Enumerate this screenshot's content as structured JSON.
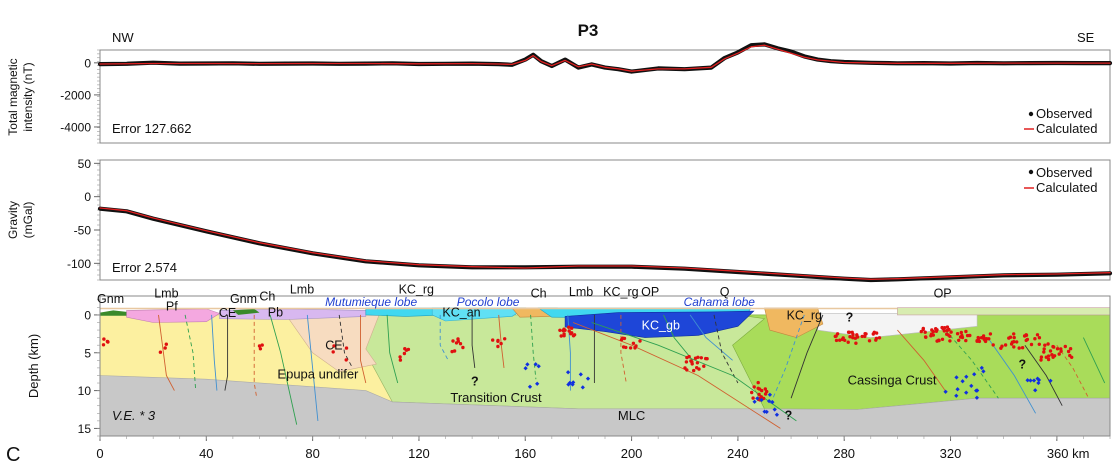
{
  "profile_title": "P3",
  "direction_left": "NW",
  "direction_right": "SE",
  "panel_letter": "C",
  "ve_label": "V.E. * 3",
  "km_unit": "km",
  "colors": {
    "observed": "#111111",
    "calculated": "#e02020",
    "upper_crust_yellow": "#fcf0a0",
    "transition_green": "#c8e89a",
    "cassinga_green": "#a9dc5a",
    "mlc_gray": "#c8c8c8",
    "kc_gb_blue": "#1e46d8",
    "cyan": "#40d8f0",
    "orange": "#f0b860",
    "pink": "#f4a8e0",
    "dark_green": "#3a8a2a",
    "sample_red": "#e01010",
    "sample_blue": "#1030e0"
  },
  "chart_data": [
    {
      "type": "line",
      "panel": "magnetics",
      "ylabel": "Total magnetic intensity (nT)",
      "yticks": [
        0,
        -2000,
        -4000
      ],
      "tick_labels": [
        "0",
        "-2000",
        "-4000"
      ],
      "ylim": [
        -5000,
        800
      ],
      "xlim": [
        0,
        380
      ],
      "legend": [
        "Observed",
        "Calculated"
      ],
      "legend_position": "bottom-right",
      "annotation": "Error 127.662",
      "series": [
        {
          "name": "Observed",
          "x": [
            0,
            10,
            20,
            30,
            40,
            50,
            60,
            70,
            80,
            90,
            100,
            110,
            120,
            130,
            140,
            150,
            155,
            160,
            163,
            166,
            170,
            175,
            180,
            185,
            190,
            195,
            200,
            210,
            220,
            230,
            235,
            240,
            245,
            250,
            255,
            260,
            265,
            270,
            275,
            280,
            290,
            300,
            310,
            320,
            330,
            340,
            350,
            360,
            370,
            380
          ],
          "y": [
            -80,
            -60,
            10,
            -50,
            -40,
            -30,
            -60,
            -50,
            -40,
            -60,
            -50,
            -30,
            -70,
            -60,
            -50,
            -80,
            -120,
            200,
            500,
            100,
            -200,
            200,
            -300,
            -100,
            -300,
            -400,
            -550,
            -350,
            -400,
            -300,
            300,
            650,
            1100,
            1150,
            900,
            700,
            400,
            200,
            100,
            50,
            0,
            -30,
            -20,
            -40,
            -10,
            -30,
            -20,
            -10,
            -20,
            -20
          ]
        },
        {
          "name": "Calculated",
          "x": [
            0,
            20,
            40,
            60,
            80,
            100,
            120,
            140,
            150,
            155,
            160,
            163,
            166,
            170,
            175,
            180,
            185,
            190,
            195,
            200,
            210,
            220,
            230,
            235,
            240,
            245,
            250,
            255,
            260,
            265,
            270,
            280,
            300,
            320,
            340,
            360,
            380
          ],
          "y": [
            -70,
            -40,
            -40,
            -50,
            -40,
            -40,
            -60,
            -50,
            -70,
            -100,
            150,
            450,
            80,
            -180,
            150,
            -250,
            -80,
            -280,
            -380,
            -520,
            -380,
            -380,
            -280,
            250,
            600,
            1000,
            1100,
            850,
            600,
            350,
            180,
            20,
            -30,
            -30,
            -20,
            -20,
            -20
          ]
        }
      ]
    },
    {
      "type": "line",
      "panel": "gravity",
      "ylabel": "Gravity (mGal)",
      "yticks": [
        50,
        0,
        -50,
        -100
      ],
      "tick_labels": [
        "50",
        "0",
        "-50",
        "-100"
      ],
      "ylim": [
        -125,
        55
      ],
      "xlim": [
        0,
        380
      ],
      "legend": [
        "Observed",
        "Calculated"
      ],
      "legend_position": "top-right",
      "annotation": "Error 2.574",
      "series": [
        {
          "name": "Observed",
          "x": [
            0,
            10,
            20,
            40,
            60,
            80,
            100,
            120,
            140,
            160,
            180,
            200,
            220,
            240,
            260,
            280,
            290,
            300,
            320,
            340,
            360,
            380
          ],
          "y": [
            -18,
            -22,
            -33,
            -52,
            -70,
            -85,
            -97,
            -103,
            -106,
            -106,
            -105,
            -105,
            -108,
            -113,
            -118,
            -123,
            -125,
            -124,
            -121,
            -118,
            -117,
            -115
          ]
        },
        {
          "name": "Calculated",
          "x": [
            0,
            10,
            20,
            40,
            60,
            80,
            100,
            120,
            140,
            160,
            180,
            200,
            220,
            240,
            260,
            280,
            290,
            300,
            320,
            340,
            360,
            380
          ],
          "y": [
            -17,
            -21,
            -32,
            -51,
            -69,
            -84,
            -96,
            -102,
            -105,
            -107,
            -104,
            -104,
            -107,
            -112,
            -117,
            -122,
            -124,
            -123,
            -120,
            -117,
            -116,
            -114
          ]
        }
      ]
    },
    {
      "type": "area",
      "panel": "model",
      "ylabel": "Depth (km)",
      "yticks": [
        0,
        5,
        10,
        15
      ],
      "tick_labels": [
        "0",
        "5",
        "10",
        "15"
      ],
      "ylim": [
        -2.5,
        16
      ],
      "xticks": [
        0,
        40,
        80,
        120,
        160,
        200,
        240,
        280,
        320,
        360
      ],
      "xtick_labels": [
        "0",
        "40",
        "80",
        "120",
        "160",
        "200",
        "240",
        "280",
        "320",
        "360 km"
      ],
      "xlim": [
        0,
        380
      ],
      "labels": [
        {
          "text": "Gnm",
          "x": 4,
          "y": -1.6
        },
        {
          "text": "Lmb",
          "x": 25,
          "y": -2.3
        },
        {
          "text": "Pf",
          "x": 27,
          "y": -0.6
        },
        {
          "text": "CE",
          "x": 48,
          "y": 0.3
        },
        {
          "text": "Gnm",
          "x": 54,
          "y": -1.6
        },
        {
          "text": "Ch",
          "x": 63,
          "y": -1.9
        },
        {
          "text": "Pb",
          "x": 66,
          "y": 0.2
        },
        {
          "text": "Lmb",
          "x": 76,
          "y": -2.8
        },
        {
          "text": "Mutumieque lobe",
          "x": 102,
          "y": -1.2,
          "style": "blue-italic"
        },
        {
          "text": "KC_rg",
          "x": 119,
          "y": -2.8
        },
        {
          "text": "Pocolo lobe",
          "x": 146,
          "y": -1.2,
          "style": "blue-italic"
        },
        {
          "text": "KC_an",
          "x": 136,
          "y": 0.2
        },
        {
          "text": "CE",
          "x": 88,
          "y": 4.6
        },
        {
          "text": "Ch",
          "x": 165,
          "y": -2.3
        },
        {
          "text": "Lmb",
          "x": 181,
          "y": -2.5
        },
        {
          "text": "KC_rg",
          "x": 196,
          "y": -2.5
        },
        {
          "text": "OP",
          "x": 207,
          "y": -2.5
        },
        {
          "text": "Cahama lobe",
          "x": 233,
          "y": -1.2,
          "style": "blue-italic"
        },
        {
          "text": "Q",
          "x": 235,
          "y": -2.5
        },
        {
          "text": "KC_gb",
          "x": 211,
          "y": 1.9,
          "style": "white"
        },
        {
          "text": "KC_rg",
          "x": 265,
          "y": 0.6
        },
        {
          "text": "OP",
          "x": 317,
          "y": -2.3
        },
        {
          "text": "?",
          "x": 282,
          "y": 0.9
        },
        {
          "text": "?",
          "x": 141,
          "y": 9.3
        },
        {
          "text": "?",
          "x": 259,
          "y": 13.8
        },
        {
          "text": "?",
          "x": 347,
          "y": 7.1
        },
        {
          "text": "Epupa undifer",
          "x": 82,
          "y": 8.4
        },
        {
          "text": "Transition Crust",
          "x": 149,
          "y": 11.5
        },
        {
          "text": "Cassinga Crust",
          "x": 298,
          "y": 9.2
        },
        {
          "text": "MLC",
          "x": 200,
          "y": 13.9
        }
      ]
    }
  ]
}
